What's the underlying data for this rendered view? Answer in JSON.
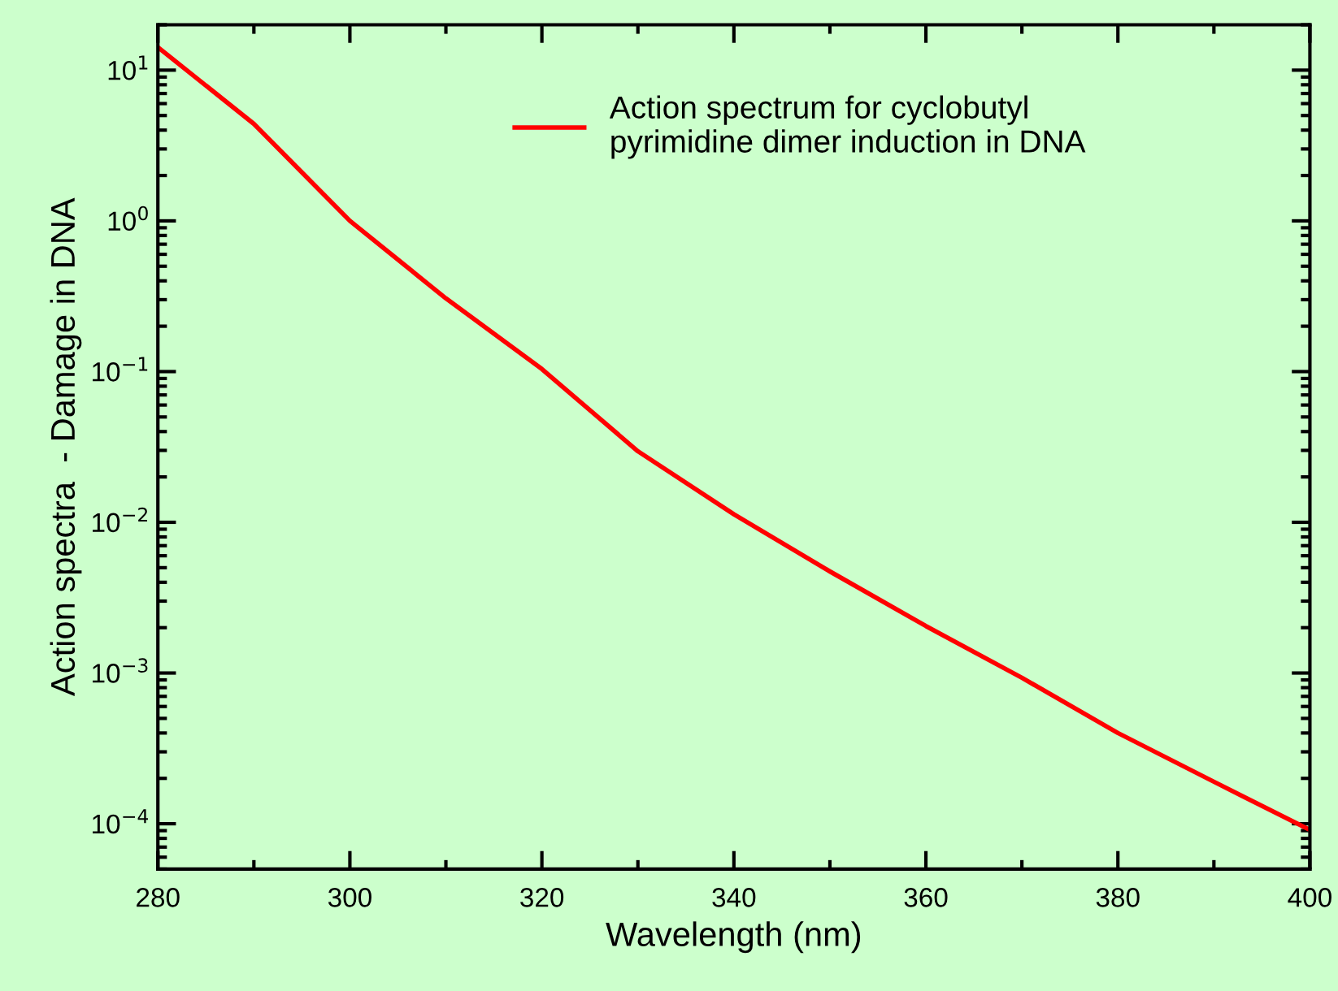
{
  "chart_data": {
    "type": "line",
    "xlabel": "Wavelength (nm)",
    "ylabel": "Action spectra  - Damage in DNA",
    "x": [
      280,
      290,
      300,
      310,
      320,
      330,
      340,
      350,
      360,
      370,
      380,
      390,
      400
    ],
    "series": [
      {
        "name": "Action spectrum for cyclobutyl\npyrimidine dimer induction in DNA",
        "color": "#ff0000",
        "values": [
          14.2,
          4.4,
          1.0,
          0.306,
          0.104,
          0.0296,
          0.0113,
          0.00472,
          0.00205,
          0.00093,
          0.0004,
          0.00019,
          9.1e-05
        ]
      }
    ],
    "log": "y",
    "xlim": [
      280,
      400
    ],
    "xticks": [
      280,
      300,
      320,
      340,
      360,
      380,
      400
    ],
    "ylim": [
      5e-05,
      20
    ],
    "yticks": [
      {
        "value": 0.0001,
        "label": "10$^{−4}$"
      },
      {
        "value": 0.001,
        "label": "10$^{−3}$"
      },
      {
        "value": 0.01,
        "label": "10$^{−2}$"
      },
      {
        "value": 0.1,
        "label": "10$^{−1}$"
      },
      {
        "value": 1,
        "label": "10$^{0}$"
      },
      {
        "value": 10,
        "label": "10$^{1}$"
      }
    ],
    "grid": false,
    "legend": "top right",
    "marker": "none",
    "line_style": "solid"
  }
}
